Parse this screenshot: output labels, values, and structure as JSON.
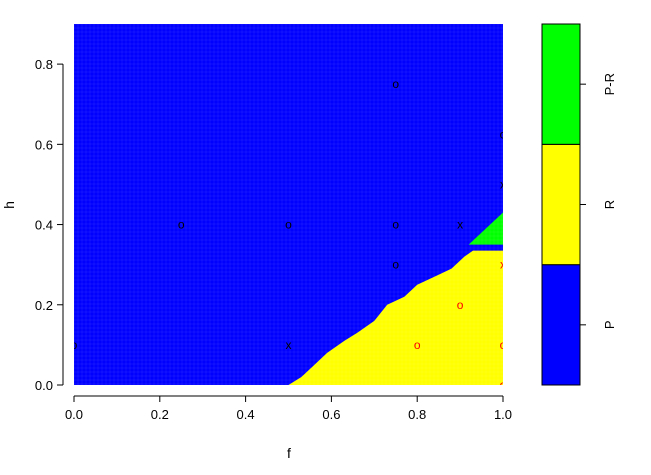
{
  "chart_data": {
    "type": "heatmap",
    "title": "",
    "xlabel": "f",
    "ylabel": "h",
    "xlim": [
      0,
      1
    ],
    "ylim": [
      0,
      0.9
    ],
    "xticks": [
      "0.0",
      "0.2",
      "0.4",
      "0.6",
      "0.8",
      "1.0"
    ],
    "yticks": [
      "0.0",
      "0.2",
      "0.4",
      "0.6",
      "0.8"
    ],
    "xtick_values": [
      0,
      0.2,
      0.4,
      0.6,
      0.8,
      1.0
    ],
    "ytick_values": [
      0,
      0.2,
      0.4,
      0.6,
      0.8
    ],
    "grid": true,
    "legend_position": "right",
    "regions": [
      {
        "name": "P",
        "color": "#0000FF"
      },
      {
        "name": "R",
        "color": "#FFFF00"
      },
      {
        "name": "P-R",
        "color": "#00FF00"
      }
    ],
    "r_region_boundary": [
      [
        0.5,
        0
      ],
      [
        0.53,
        0.02
      ],
      [
        0.56,
        0.05
      ],
      [
        0.59,
        0.08
      ],
      [
        0.63,
        0.11
      ],
      [
        0.66,
        0.13
      ],
      [
        0.7,
        0.16
      ],
      [
        0.73,
        0.2
      ],
      [
        0.77,
        0.22
      ],
      [
        0.8,
        0.25
      ],
      [
        0.84,
        0.27
      ],
      [
        0.88,
        0.29
      ],
      [
        0.91,
        0.32
      ],
      [
        0.93,
        0.335
      ],
      [
        1.0,
        0.335
      ],
      [
        1.0,
        0
      ]
    ],
    "pr_region": [
      [
        0.92,
        0.35
      ],
      [
        1.0,
        0.43
      ],
      [
        1.0,
        0.35
      ]
    ],
    "points": [
      {
        "x": 0.0,
        "y": 0.1,
        "marker": "o",
        "color": "#000000"
      },
      {
        "x": 0.25,
        "y": 0.4,
        "marker": "o",
        "color": "#000000"
      },
      {
        "x": 0.5,
        "y": 0.4,
        "marker": "o",
        "color": "#000000"
      },
      {
        "x": 0.75,
        "y": 0.4,
        "marker": "o",
        "color": "#000000"
      },
      {
        "x": 0.9,
        "y": 0.4,
        "marker": "x",
        "color": "#000000"
      },
      {
        "x": 0.75,
        "y": 0.75,
        "marker": "o",
        "color": "#000000"
      },
      {
        "x": 1.0,
        "y": 0.625,
        "marker": "o",
        "color": "#000000"
      },
      {
        "x": 1.0,
        "y": 0.5,
        "marker": "x",
        "color": "#000000"
      },
      {
        "x": 0.75,
        "y": 0.3,
        "marker": "o",
        "color": "#000000"
      },
      {
        "x": 0.5,
        "y": 0.1,
        "marker": "x",
        "color": "#000000"
      },
      {
        "x": 1.0,
        "y": 0.3,
        "marker": "x",
        "color": "#FF0000"
      },
      {
        "x": 0.9,
        "y": 0.2,
        "marker": "o",
        "color": "#FF0000"
      },
      {
        "x": 0.8,
        "y": 0.1,
        "marker": "o",
        "color": "#FF0000"
      },
      {
        "x": 1.0,
        "y": 0.1,
        "marker": "o",
        "color": "#FF0000"
      },
      {
        "x": 1.0,
        "y": 0.0,
        "marker": "o",
        "color": "#FF0000"
      }
    ]
  }
}
